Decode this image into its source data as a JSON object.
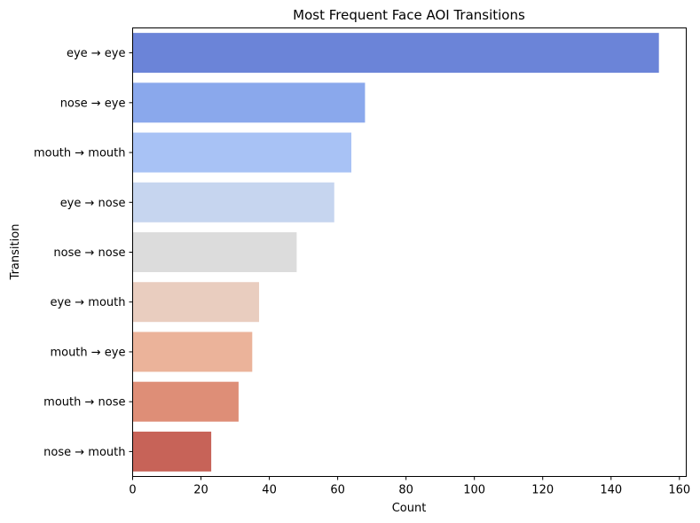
{
  "chart_data": {
    "type": "bar",
    "orientation": "horizontal",
    "title": "Most Frequent Face AOI Transitions",
    "xlabel": "Count",
    "ylabel": "Transition",
    "xlim": [
      0,
      162
    ],
    "xticks": [
      0,
      20,
      40,
      60,
      80,
      100,
      120,
      140,
      160
    ],
    "categories": [
      "eye → eye",
      "nose → eye",
      "mouth → mouth",
      "eye → nose",
      "nose → nose",
      "eye → mouth",
      "mouth → eye",
      "mouth → nose",
      "nose → mouth"
    ],
    "values": [
      154,
      68,
      64,
      59,
      48,
      37,
      35,
      31,
      23
    ],
    "colors": [
      "#6b84d8",
      "#8aa8ec",
      "#a8c2f5",
      "#c6d5ef",
      "#dcdcdc",
      "#e9cdbf",
      "#ebb39a",
      "#de8e77",
      "#c76358"
    ],
    "grid": false,
    "legend": "none"
  }
}
